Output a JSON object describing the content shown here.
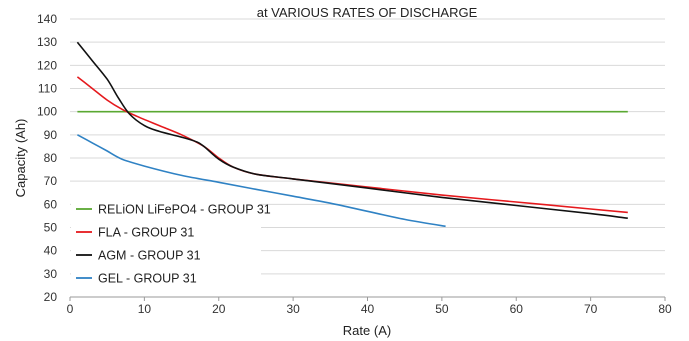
{
  "chart_data": {
    "type": "line",
    "title": "at VARIOUS RATES OF DISCHARGE",
    "xlabel": "Rate (A)",
    "ylabel": "Capacity (Ah)",
    "xlim": [
      0,
      80
    ],
    "ylim": [
      20,
      140
    ],
    "xticks": [
      0,
      10,
      20,
      30,
      40,
      50,
      60,
      70,
      80
    ],
    "yticks": [
      20,
      30,
      40,
      50,
      60,
      70,
      80,
      90,
      100,
      110,
      120,
      130,
      140
    ],
    "grid": "horizontal",
    "legend_position": "bottom-left",
    "series": [
      {
        "name": "RELiON LiFePO4 - GROUP 31",
        "color": "#5aa832",
        "x": [
          1,
          75
        ],
        "y": [
          100,
          100
        ]
      },
      {
        "name": "FLA - GROUP 31",
        "color": "#e5191d",
        "x": [
          1,
          3,
          5,
          7,
          9,
          12,
          15,
          18,
          20,
          22,
          25,
          30,
          40,
          50,
          60,
          70,
          75
        ],
        "y": [
          115,
          110,
          105,
          101,
          98,
          94,
          90,
          85,
          80,
          76,
          73,
          71,
          67.5,
          64,
          61,
          58,
          56.5
        ]
      },
      {
        "name": "AGM - GROUP 31",
        "color": "#111111",
        "x": [
          1,
          3,
          5,
          6.5,
          8,
          10,
          12,
          15,
          17,
          18,
          20,
          22,
          25,
          30,
          40,
          50,
          60,
          70,
          75
        ],
        "y": [
          130,
          122,
          114,
          106,
          99,
          94,
          91.5,
          89,
          87,
          85,
          79.5,
          76,
          73,
          71,
          67,
          63,
          59.5,
          56,
          54
        ]
      },
      {
        "name": "GEL - GROUP 31",
        "color": "#2f82c4",
        "x": [
          1,
          3,
          5,
          7,
          10,
          15,
          20,
          25,
          30,
          35,
          40,
          45,
          50.5
        ],
        "y": [
          90,
          86.5,
          83,
          79.5,
          76.5,
          72.5,
          69.5,
          66.5,
          63.5,
          60.5,
          57,
          53.5,
          50.5
        ]
      }
    ]
  }
}
